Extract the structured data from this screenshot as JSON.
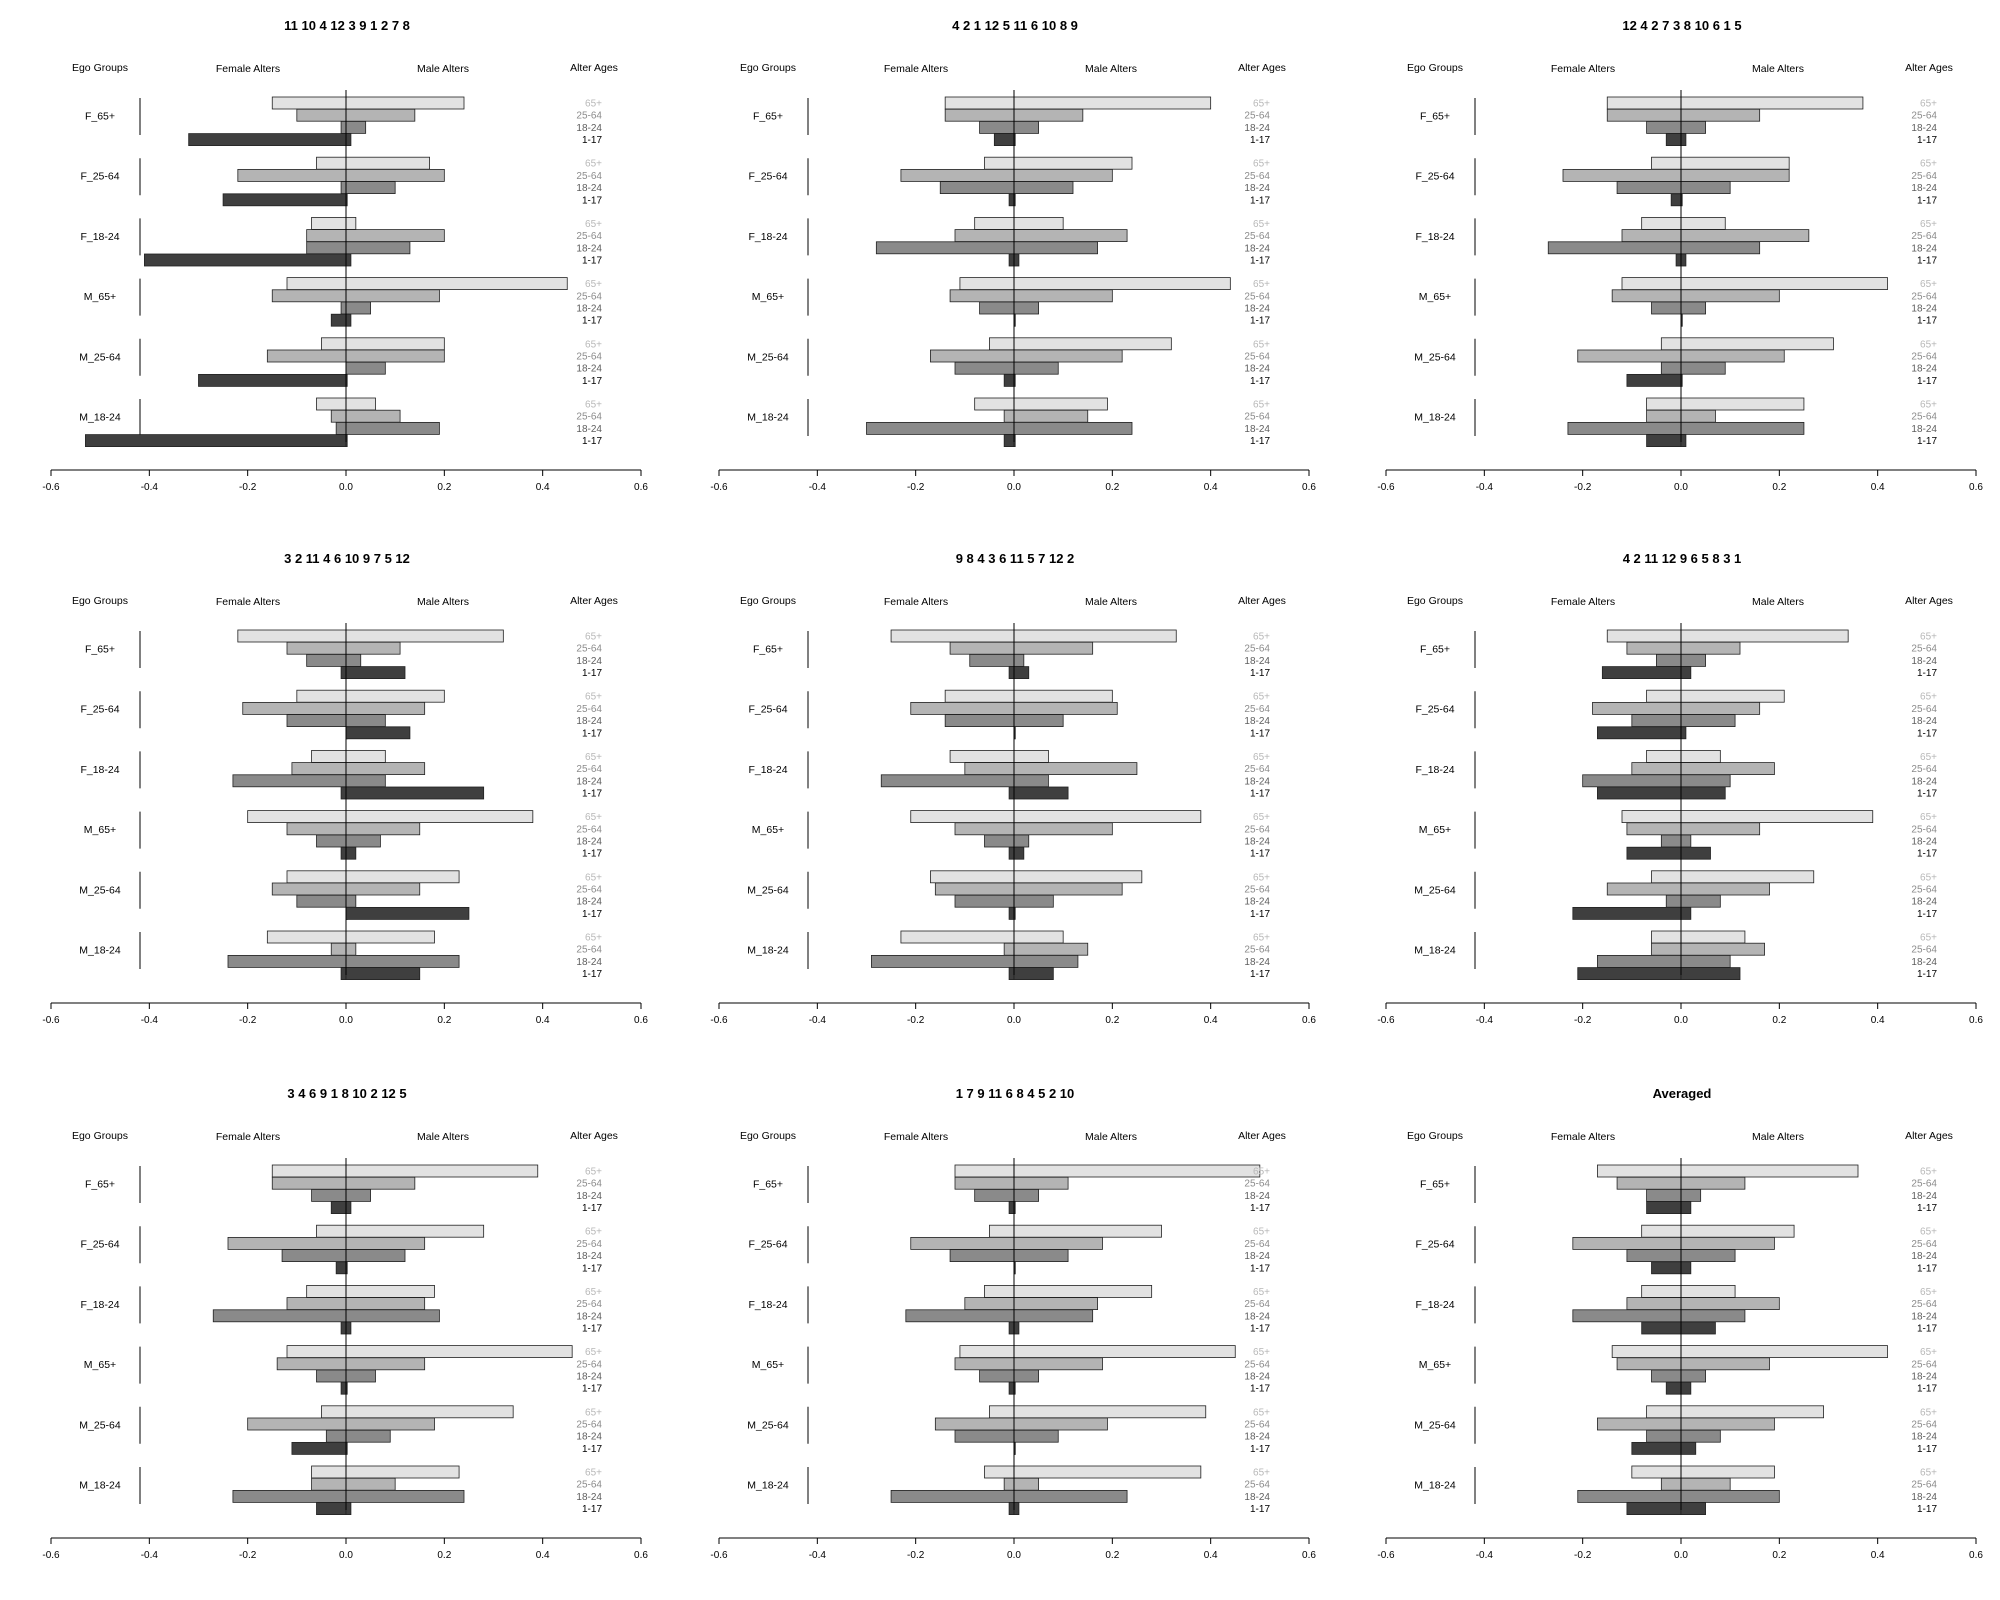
{
  "colors": {
    "age_fill": {
      "65+": "#e2e2e2",
      "25-64": "#b4b4b4",
      "18-24": "#8a8a8a",
      "1-17": "#3f3f3f"
    },
    "age_text": {
      "65+": "#b8b8b8",
      "25-64": "#8c8c8c",
      "18-24": "#5e5e5e",
      "1-17": "#000000"
    },
    "bar_stroke": "#222222"
  },
  "chart_data": [
    {
      "type": "bar",
      "title": "11 10 4 12 3 9 1 2 7 8",
      "headers": {
        "ego": "Ego Groups",
        "female": "Female Alters",
        "male": "Male Alters",
        "ages": "Alter Ages"
      },
      "groups": [
        "F_65+",
        "F_25-64",
        "F_18-24",
        "M_65+",
        "M_25-64",
        "M_18-24"
      ],
      "age_labels": [
        "65+",
        "25-64",
        "18-24",
        "1-17"
      ],
      "xlim": [
        -0.6,
        0.6
      ],
      "xticks": [
        "-0.6",
        "-0.4",
        "-0.2",
        "0.0",
        "0.2",
        "0.4",
        "0.6"
      ],
      "female": [
        [
          -0.15,
          -0.1,
          -0.01,
          -0.32
        ],
        [
          -0.06,
          -0.22,
          -0.01,
          -0.25
        ],
        [
          -0.07,
          -0.08,
          -0.08,
          -0.41
        ],
        [
          -0.12,
          -0.15,
          -0.01,
          -0.03
        ],
        [
          -0.05,
          -0.16,
          0.0,
          -0.3
        ],
        [
          -0.06,
          -0.03,
          -0.02,
          -0.53
        ]
      ],
      "male": [
        [
          0.24,
          0.14,
          0.04,
          0.01
        ],
        [
          0.17,
          0.2,
          0.1,
          0.0
        ],
        [
          0.02,
          0.2,
          0.13,
          0.01
        ],
        [
          0.45,
          0.19,
          0.05,
          0.01
        ],
        [
          0.2,
          0.2,
          0.08,
          0.0
        ],
        [
          0.06,
          0.11,
          0.19,
          0.0
        ]
      ]
    },
    {
      "type": "bar",
      "title": "4 2 1 12 5 11 6 10 8 9",
      "headers": {
        "ego": "Ego Groups",
        "female": "Female Alters",
        "male": "Male Alters",
        "ages": "Alter Ages"
      },
      "groups": [
        "F_65+",
        "F_25-64",
        "F_18-24",
        "M_65+",
        "M_25-64",
        "M_18-24"
      ],
      "age_labels": [
        "65+",
        "25-64",
        "18-24",
        "1-17"
      ],
      "xlim": [
        -0.6,
        0.6
      ],
      "xticks": [
        "-0.6",
        "-0.4",
        "-0.2",
        "0.0",
        "0.2",
        "0.4",
        "0.6"
      ],
      "female": [
        [
          -0.14,
          -0.14,
          -0.07,
          -0.04
        ],
        [
          -0.06,
          -0.23,
          -0.15,
          -0.01
        ],
        [
          -0.08,
          -0.12,
          -0.28,
          -0.01
        ],
        [
          -0.11,
          -0.13,
          -0.07,
          0.0
        ],
        [
          -0.05,
          -0.17,
          -0.12,
          -0.02
        ],
        [
          -0.08,
          -0.02,
          -0.3,
          -0.02
        ]
      ],
      "male": [
        [
          0.4,
          0.14,
          0.05,
          0.0
        ],
        [
          0.24,
          0.2,
          0.12,
          0.0
        ],
        [
          0.1,
          0.23,
          0.17,
          0.01
        ],
        [
          0.44,
          0.2,
          0.05,
          0.0
        ],
        [
          0.32,
          0.22,
          0.09,
          0.0
        ],
        [
          0.19,
          0.15,
          0.24,
          0.0
        ]
      ]
    },
    {
      "type": "bar",
      "title": "12 4 2 7 3 8 10 6 1 5",
      "headers": {
        "ego": "Ego Groups",
        "female": "Female Alters",
        "male": "Male Alters",
        "ages": "Alter Ages"
      },
      "groups": [
        "F_65+",
        "F_25-64",
        "F_18-24",
        "M_65+",
        "M_25-64",
        "M_18-24"
      ],
      "age_labels": [
        "65+",
        "25-64",
        "18-24",
        "1-17"
      ],
      "xlim": [
        -0.6,
        0.6
      ],
      "xticks": [
        "-0.6",
        "-0.4",
        "-0.2",
        "0.0",
        "0.2",
        "0.4",
        "0.6"
      ],
      "female": [
        [
          -0.15,
          -0.15,
          -0.07,
          -0.03
        ],
        [
          -0.06,
          -0.24,
          -0.13,
          -0.02
        ],
        [
          -0.08,
          -0.12,
          -0.27,
          -0.01
        ],
        [
          -0.12,
          -0.14,
          -0.06,
          0.0
        ],
        [
          -0.04,
          -0.21,
          -0.04,
          -0.11
        ],
        [
          -0.07,
          -0.07,
          -0.23,
          -0.07
        ]
      ],
      "male": [
        [
          0.37,
          0.16,
          0.05,
          0.01
        ],
        [
          0.22,
          0.22,
          0.1,
          0.0
        ],
        [
          0.09,
          0.26,
          0.16,
          0.01
        ],
        [
          0.42,
          0.2,
          0.05,
          0.0
        ],
        [
          0.31,
          0.21,
          0.09,
          0.0
        ],
        [
          0.25,
          0.07,
          0.25,
          0.01
        ]
      ]
    },
    {
      "type": "bar",
      "title": "3 2 11 4 6 10 9 7 5 12",
      "headers": {
        "ego": "Ego Groups",
        "female": "Female Alters",
        "male": "Male Alters",
        "ages": "Alter Ages"
      },
      "groups": [
        "F_65+",
        "F_25-64",
        "F_18-24",
        "M_65+",
        "M_25-64",
        "M_18-24"
      ],
      "age_labels": [
        "65+",
        "25-64",
        "18-24",
        "1-17"
      ],
      "xlim": [
        -0.6,
        0.6
      ],
      "xticks": [
        "-0.6",
        "-0.4",
        "-0.2",
        "0.0",
        "0.2",
        "0.4",
        "0.6"
      ],
      "female": [
        [
          -0.22,
          -0.12,
          -0.08,
          -0.01
        ],
        [
          -0.1,
          -0.21,
          -0.12,
          0.0
        ],
        [
          -0.07,
          -0.11,
          -0.23,
          -0.01
        ],
        [
          -0.2,
          -0.12,
          -0.06,
          -0.01
        ],
        [
          -0.12,
          -0.15,
          -0.1,
          0.0
        ],
        [
          -0.16,
          -0.03,
          -0.24,
          -0.01
        ]
      ],
      "male": [
        [
          0.32,
          0.11,
          0.03,
          0.12
        ],
        [
          0.2,
          0.16,
          0.08,
          0.13
        ],
        [
          0.08,
          0.16,
          0.08,
          0.28
        ],
        [
          0.38,
          0.15,
          0.07,
          0.02
        ],
        [
          0.23,
          0.15,
          0.02,
          0.25
        ],
        [
          0.18,
          0.02,
          0.23,
          0.15
        ]
      ]
    },
    {
      "type": "bar",
      "title": "9 8 4 3 6 11 5 7 12 2",
      "headers": {
        "ego": "Ego Groups",
        "female": "Female Alters",
        "male": "Male Alters",
        "ages": "Alter Ages"
      },
      "groups": [
        "F_65+",
        "F_25-64",
        "F_18-24",
        "M_65+",
        "M_25-64",
        "M_18-24"
      ],
      "age_labels": [
        "65+",
        "25-64",
        "18-24",
        "1-17"
      ],
      "xlim": [
        -0.6,
        0.6
      ],
      "xticks": [
        "-0.6",
        "-0.4",
        "-0.2",
        "0.0",
        "0.2",
        "0.4",
        "0.6"
      ],
      "female": [
        [
          -0.25,
          -0.13,
          -0.09,
          -0.01
        ],
        [
          -0.14,
          -0.21,
          -0.14,
          0.0
        ],
        [
          -0.13,
          -0.1,
          -0.27,
          -0.01
        ],
        [
          -0.21,
          -0.12,
          -0.06,
          -0.01
        ],
        [
          -0.17,
          -0.16,
          -0.12,
          -0.01
        ],
        [
          -0.23,
          -0.02,
          -0.29,
          -0.01
        ]
      ],
      "male": [
        [
          0.33,
          0.16,
          0.02,
          0.03
        ],
        [
          0.2,
          0.21,
          0.1,
          0.0
        ],
        [
          0.07,
          0.25,
          0.07,
          0.11
        ],
        [
          0.38,
          0.2,
          0.03,
          0.02
        ],
        [
          0.26,
          0.22,
          0.08,
          0.0
        ],
        [
          0.1,
          0.15,
          0.13,
          0.08
        ]
      ]
    },
    {
      "type": "bar",
      "title": "4 2 11 12 9 6 5 8 3 1",
      "headers": {
        "ego": "Ego Groups",
        "female": "Female Alters",
        "male": "Male Alters",
        "ages": "Alter Ages"
      },
      "groups": [
        "F_65+",
        "F_25-64",
        "F_18-24",
        "M_65+",
        "M_25-64",
        "M_18-24"
      ],
      "age_labels": [
        "65+",
        "25-64",
        "18-24",
        "1-17"
      ],
      "xlim": [
        -0.6,
        0.6
      ],
      "xticks": [
        "-0.6",
        "-0.4",
        "-0.2",
        "0.0",
        "0.2",
        "0.4",
        "0.6"
      ],
      "female": [
        [
          -0.15,
          -0.11,
          -0.05,
          -0.16
        ],
        [
          -0.07,
          -0.18,
          -0.1,
          -0.17
        ],
        [
          -0.07,
          -0.1,
          -0.2,
          -0.17
        ],
        [
          -0.12,
          -0.11,
          -0.04,
          -0.11
        ],
        [
          -0.06,
          -0.15,
          -0.03,
          -0.22
        ],
        [
          -0.06,
          -0.06,
          -0.17,
          -0.21
        ]
      ],
      "male": [
        [
          0.34,
          0.12,
          0.05,
          0.02
        ],
        [
          0.21,
          0.16,
          0.11,
          0.01
        ],
        [
          0.08,
          0.19,
          0.1,
          0.09
        ],
        [
          0.39,
          0.16,
          0.02,
          0.06
        ],
        [
          0.27,
          0.18,
          0.08,
          0.02
        ],
        [
          0.13,
          0.17,
          0.1,
          0.12
        ]
      ]
    },
    {
      "type": "bar",
      "title": "3 4 6 9 1 8 10 2 12 5",
      "headers": {
        "ego": "Ego Groups",
        "female": "Female Alters",
        "male": "Male Alters",
        "ages": "Alter Ages"
      },
      "groups": [
        "F_65+",
        "F_25-64",
        "F_18-24",
        "M_65+",
        "M_25-64",
        "M_18-24"
      ],
      "age_labels": [
        "65+",
        "25-64",
        "18-24",
        "1-17"
      ],
      "xlim": [
        -0.6,
        0.6
      ],
      "xticks": [
        "-0.6",
        "-0.4",
        "-0.2",
        "0.0",
        "0.2",
        "0.4",
        "0.6"
      ],
      "female": [
        [
          -0.15,
          -0.15,
          -0.07,
          -0.03
        ],
        [
          -0.06,
          -0.24,
          -0.13,
          -0.02
        ],
        [
          -0.08,
          -0.12,
          -0.27,
          -0.01
        ],
        [
          -0.12,
          -0.14,
          -0.06,
          -0.01
        ],
        [
          -0.05,
          -0.2,
          -0.04,
          -0.11
        ],
        [
          -0.07,
          -0.07,
          -0.23,
          -0.06
        ]
      ],
      "male": [
        [
          0.39,
          0.14,
          0.05,
          0.01
        ],
        [
          0.28,
          0.16,
          0.12,
          0.0
        ],
        [
          0.18,
          0.16,
          0.19,
          0.01
        ],
        [
          0.46,
          0.16,
          0.06,
          0.0
        ],
        [
          0.34,
          0.18,
          0.09,
          0.0
        ],
        [
          0.23,
          0.1,
          0.24,
          0.01
        ]
      ]
    },
    {
      "type": "bar",
      "title": "1 7 9 11 6 8 4 5 2 10",
      "headers": {
        "ego": "Ego Groups",
        "female": "Female Alters",
        "male": "Male Alters",
        "ages": "Alter Ages"
      },
      "groups": [
        "F_65+",
        "F_25-64",
        "F_18-24",
        "M_65+",
        "M_25-64",
        "M_18-24"
      ],
      "age_labels": [
        "65+",
        "25-64",
        "18-24",
        "1-17"
      ],
      "xlim": [
        -0.6,
        0.6
      ],
      "xticks": [
        "-0.6",
        "-0.4",
        "-0.2",
        "0.0",
        "0.2",
        "0.4",
        "0.6"
      ],
      "female": [
        [
          -0.12,
          -0.12,
          -0.08,
          -0.01
        ],
        [
          -0.05,
          -0.21,
          -0.13,
          0.0
        ],
        [
          -0.06,
          -0.1,
          -0.22,
          -0.01
        ],
        [
          -0.11,
          -0.12,
          -0.07,
          -0.01
        ],
        [
          -0.05,
          -0.16,
          -0.12,
          0.0
        ],
        [
          -0.06,
          -0.02,
          -0.25,
          -0.01
        ]
      ],
      "male": [
        [
          0.5,
          0.11,
          0.05,
          0.0
        ],
        [
          0.3,
          0.18,
          0.11,
          0.0
        ],
        [
          0.28,
          0.17,
          0.16,
          0.01
        ],
        [
          0.45,
          0.18,
          0.05,
          0.0
        ],
        [
          0.39,
          0.19,
          0.09,
          0.0
        ],
        [
          0.38,
          0.05,
          0.23,
          0.01
        ]
      ]
    },
    {
      "type": "bar",
      "title": "Averaged",
      "headers": {
        "ego": "Ego Groups",
        "female": "Female Alters",
        "male": "Male Alters",
        "ages": "Alter Ages"
      },
      "groups": [
        "F_65+",
        "F_25-64",
        "F_18-24",
        "M_65+",
        "M_25-64",
        "M_18-24"
      ],
      "age_labels": [
        "65+",
        "25-64",
        "18-24",
        "1-17"
      ],
      "xlim": [
        -0.6,
        0.6
      ],
      "xticks": [
        "-0.6",
        "-0.4",
        "-0.2",
        "0.0",
        "0.2",
        "0.4",
        "0.6"
      ],
      "female": [
        [
          -0.17,
          -0.13,
          -0.07,
          -0.07
        ],
        [
          -0.08,
          -0.22,
          -0.11,
          -0.06
        ],
        [
          -0.08,
          -0.11,
          -0.22,
          -0.08
        ],
        [
          -0.14,
          -0.13,
          -0.06,
          -0.03
        ],
        [
          -0.07,
          -0.17,
          -0.07,
          -0.1
        ],
        [
          -0.1,
          -0.04,
          -0.21,
          -0.11
        ]
      ],
      "male": [
        [
          0.36,
          0.13,
          0.04,
          0.02
        ],
        [
          0.23,
          0.19,
          0.11,
          0.02
        ],
        [
          0.11,
          0.2,
          0.13,
          0.07
        ],
        [
          0.42,
          0.18,
          0.05,
          0.02
        ],
        [
          0.29,
          0.19,
          0.08,
          0.03
        ],
        [
          0.19,
          0.1,
          0.2,
          0.05
        ]
      ]
    }
  ]
}
